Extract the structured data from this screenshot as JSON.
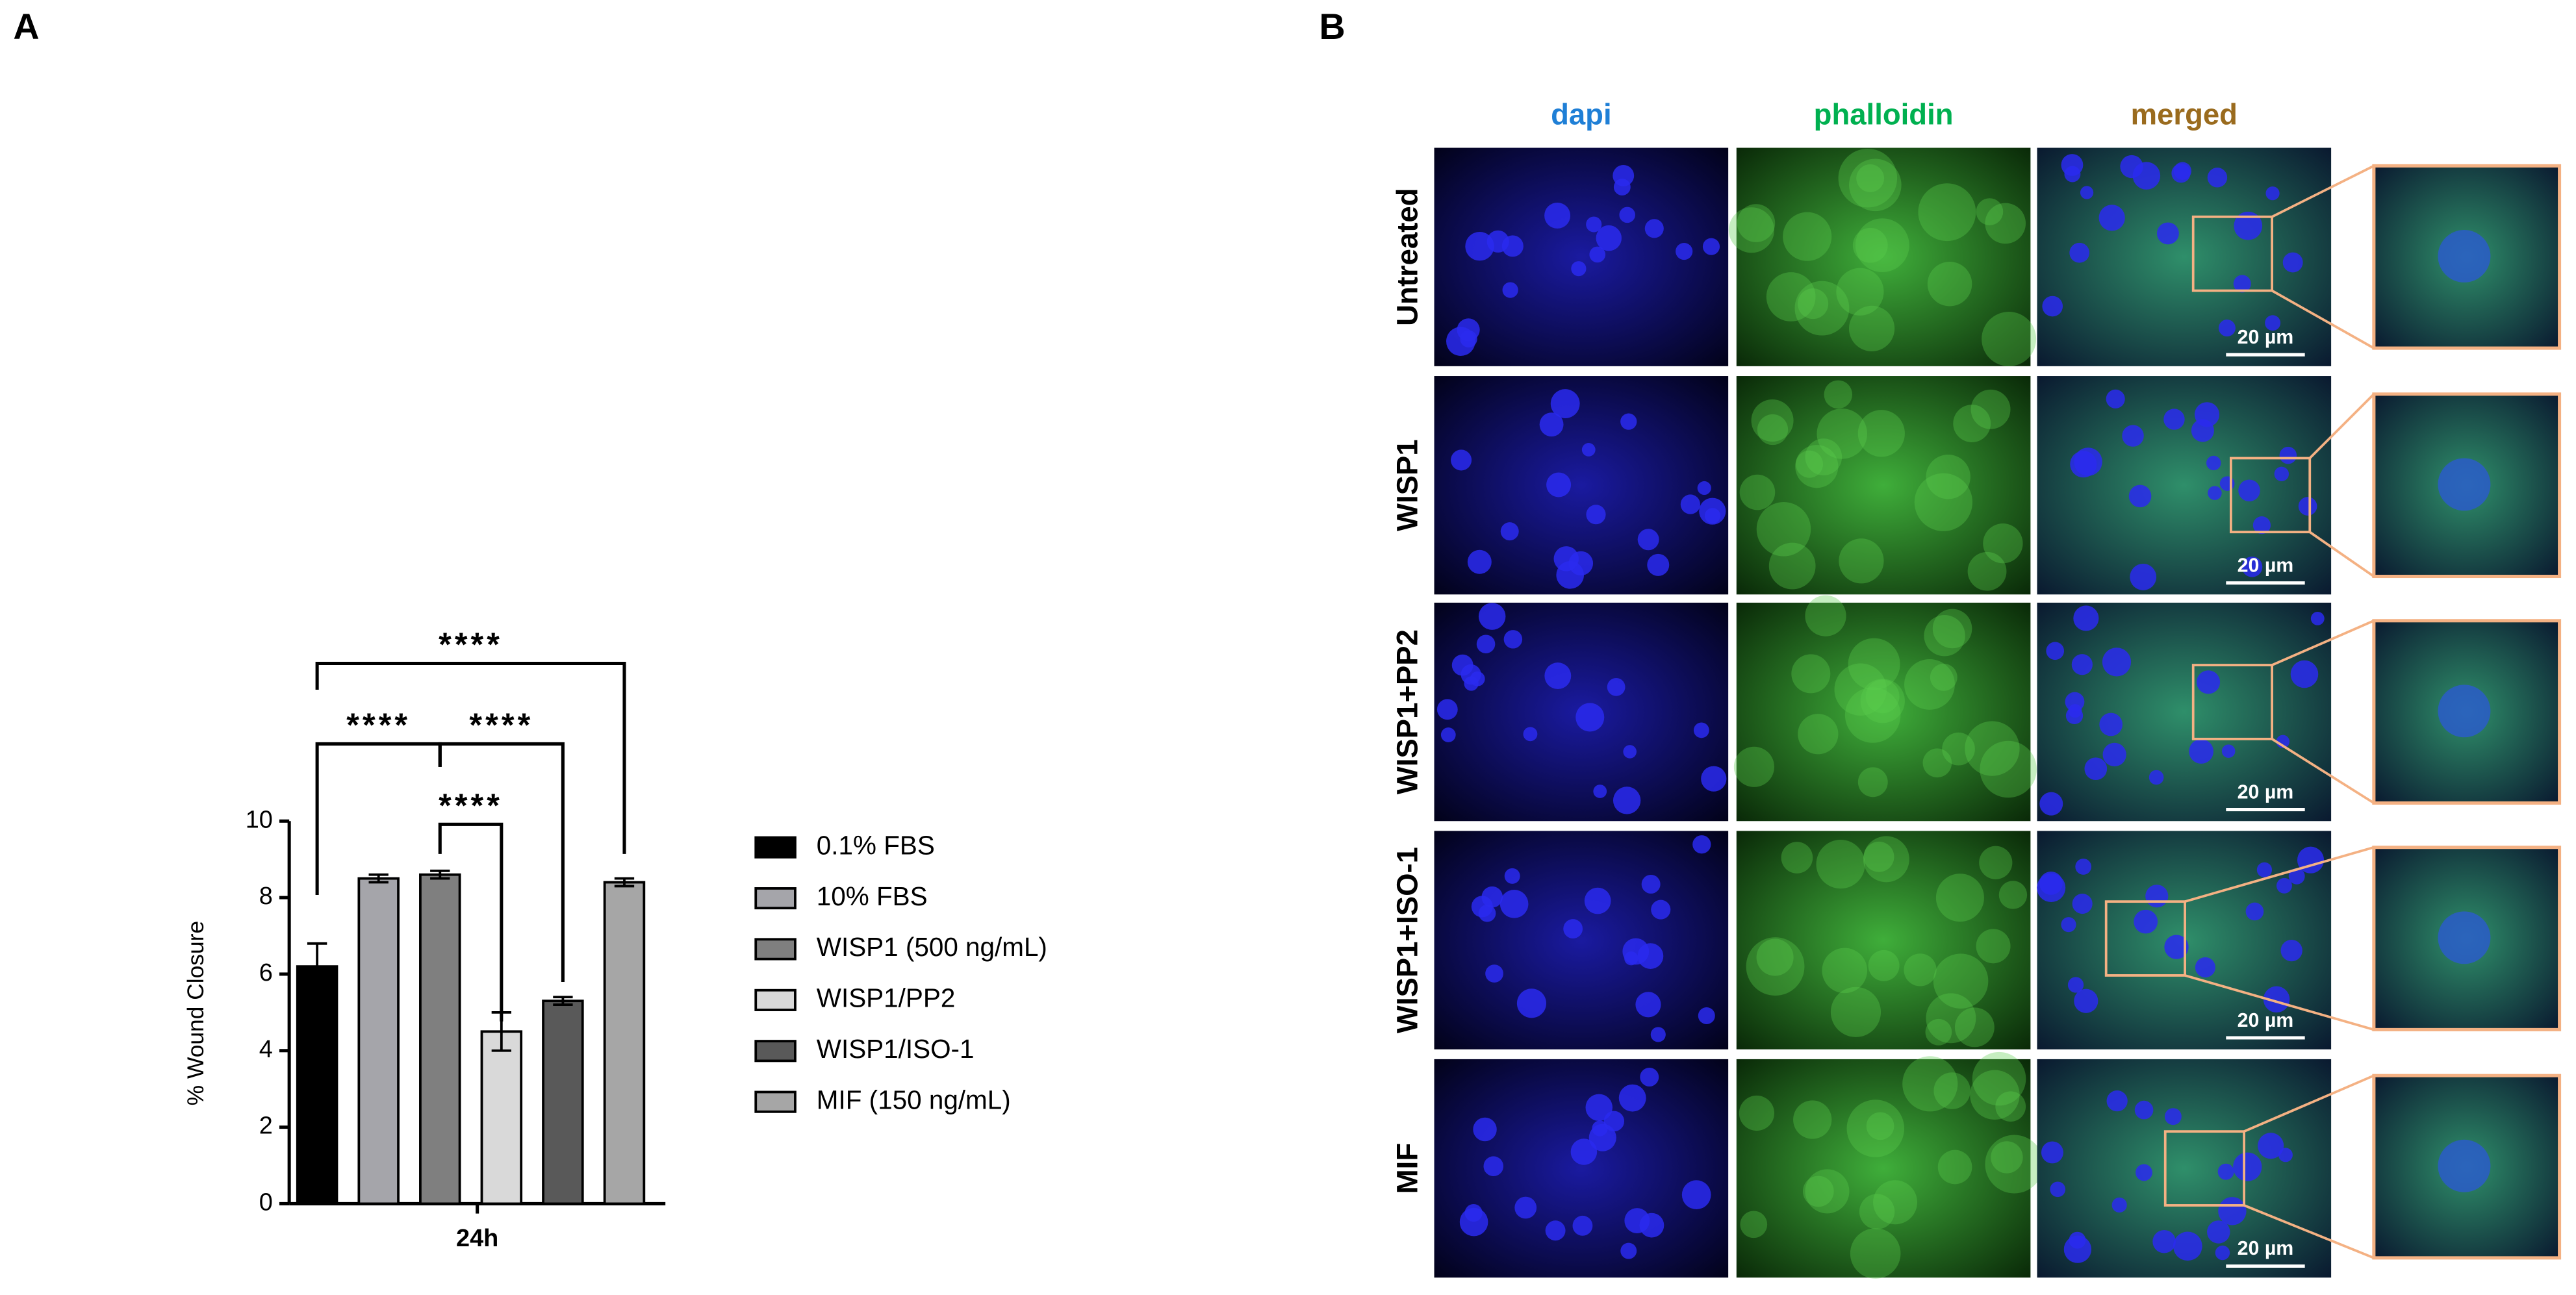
{
  "panel_labels": [
    "A",
    "B"
  ],
  "chart_data": {
    "type": "bar",
    "categories": [
      "24h"
    ],
    "y_label": "% Wound Closure",
    "ylim": [
      0,
      10
    ],
    "yticks": [
      0,
      2,
      4,
      6,
      8,
      10
    ],
    "series": [
      {
        "name": "0.1% FBS",
        "color": "#000000",
        "values": [
          6.2
        ],
        "errors": [
          0.6
        ]
      },
      {
        "name": "10% FBS",
        "color": "#a5a5aa",
        "values": [
          8.5
        ],
        "errors": [
          0.1
        ]
      },
      {
        "name": "WISP1 (500 ng/mL)",
        "color": "#7f7f7f",
        "values": [
          8.6
        ],
        "errors": [
          0.1
        ]
      },
      {
        "name": "WISP1/PP2",
        "color": "#d9d9d9",
        "values": [
          4.5
        ],
        "errors": [
          0.5
        ]
      },
      {
        "name": "WISP1/ISO-1",
        "color": "#595959",
        "values": [
          5.3
        ],
        "errors": [
          0.1
        ]
      },
      {
        "name": "MIF (150 ng/mL)",
        "color": "#a6a6a6",
        "values": [
          8.4
        ],
        "errors": [
          0.1
        ]
      }
    ],
    "annotations": [
      "****",
      "****",
      "****",
      "****"
    ]
  },
  "microscopy": {
    "columns": [
      "dapi",
      "phalloidin",
      "merged"
    ],
    "rows": [
      "Untreated",
      "WISP1",
      "WISP1+PP2",
      "WISP1+ISO-1",
      "MIF"
    ],
    "scale_bars": [
      "20 µm",
      "20 µm",
      "20 µm",
      "20 µm",
      "20 µm"
    ]
  }
}
